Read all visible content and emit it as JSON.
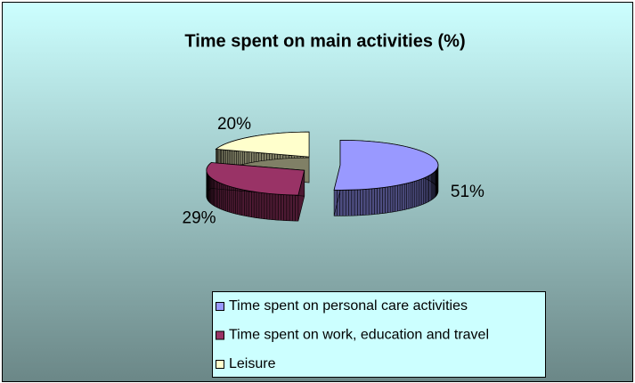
{
  "chart_data": {
    "type": "pie",
    "title": "Time spent on main activities (%)",
    "categories": [
      "Time spent on personal care activities",
      "Time spent on work, education and travel",
      "Leisure"
    ],
    "values": [
      51,
      29,
      20
    ],
    "value_labels": [
      "51%",
      "29%",
      "20%"
    ],
    "colors": [
      "#9999ff",
      "#993366",
      "#ffffcc"
    ],
    "legend": "bottom",
    "exploded": true,
    "three_d": true
  }
}
